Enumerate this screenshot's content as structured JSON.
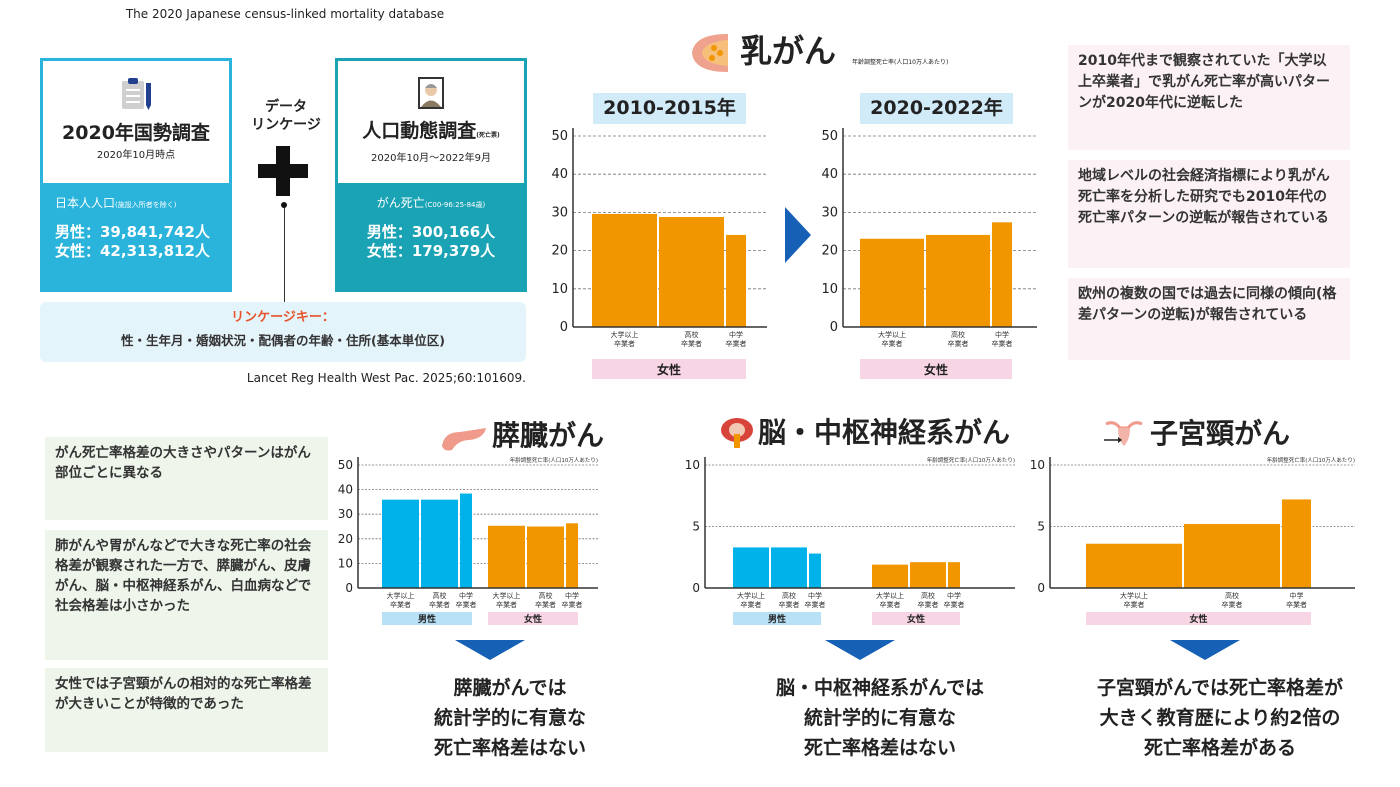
{
  "database": {
    "title": "The 2020 Japanese census-linked mortality database",
    "census": {
      "icon": "clipboard-icon",
      "title": "2020年国勢調査",
      "date": "2020年10月時点",
      "pop_label": "日本人人口",
      "pop_note": "(施設入所者を除く)",
      "male": "男性：39,841,742人",
      "female": "女性：42,313,812人",
      "color": "#2ab4dc"
    },
    "vital": {
      "icon": "portrait-icon",
      "title": "人口動態調査",
      "title_note": "(死亡票)",
      "date": "2020年10月～2022年9月",
      "death_label": "がん死亡",
      "death_note": "(C00-96:25-84歳)",
      "male": "男性：300,166人",
      "female": "女性：179,379人",
      "color": "#1aa3b4"
    },
    "linkage_label": "データ\nリンケージ",
    "linkage_key_label": "リンケージキー：",
    "linkage_key_value": "性・生年月・婚姻状況・配偶者の年齢・住所(基本単位区)",
    "citation": "Lancet Reg Health West Pac. 2025;60:101609."
  },
  "breast": {
    "title": "乳がん",
    "subtitle": "年齢調整死亡率(人口10万人あたり)",
    "icon": "breast-icon",
    "arrow_icon": "right-arrow-icon"
  },
  "notes_right": [
    "2010年代まで観察されていた「大学以上卒業者」で乳がん死亡率が高いパターンが2020年代に逆転した",
    "地域レベルの社会経済指標により乳がん死亡率を分析した研究でも2010年代の死亡率パターンの逆転が報告されている",
    "欧州の複数の国では過去に同様の傾向(格差パターンの逆転)が報告されている"
  ],
  "notes_left": [
    "がん死亡率格差の大きさやパターンはがん部位ごとに異なる",
    "肺がんや胃がんなどで大きな死亡率の社会格差が観察された一方で、膵臓がん、皮膚がん、脳・中枢神経系がん、白血病などで社会格差は小さかった",
    "女性では子宮頸がんの相対的な死亡率格差が大きいことが特徴的であった"
  ],
  "conclusions": [
    "膵臓がんでは\n統計学的に有意な\n死亡率格差はない",
    "脳・中枢神経系がんでは\n統計学的に有意な\n死亡率格差はない",
    "子宮頸がんでは死亡率格差が\n大きく教育歴により約2倍の\n死亡率格差がある"
  ],
  "colors": {
    "male": "#00b2ea",
    "female": "#f29600",
    "male_label_bg": "#b9e1f6",
    "female_label_bg": "#f7d5e4",
    "arrow": "#1660b5"
  },
  "chart_data": [
    {
      "type": "bar",
      "title": "乳がん",
      "period": "2010-2015年",
      "ylabel": "年齢調整死亡率(人口10万人あたり)",
      "ylim": [
        0,
        50
      ],
      "yticks": [
        0,
        10,
        20,
        30,
        40,
        50
      ],
      "grid": true,
      "groups": [
        {
          "name": "女性",
          "categories": [
            "大学以上\n卒業者",
            "高校\n卒業者",
            "中学\n卒業者"
          ],
          "values": [
            29.6,
            28.8,
            24.1
          ]
        }
      ]
    },
    {
      "type": "bar",
      "title": "乳がん",
      "period": "2020-2022年",
      "ylabel": "年齢調整死亡率(人口10万人あたり)",
      "ylim": [
        0,
        50
      ],
      "yticks": [
        0,
        10,
        20,
        30,
        40,
        50
      ],
      "grid": true,
      "groups": [
        {
          "name": "女性",
          "categories": [
            "大学以上\n卒業者",
            "高校\n卒業者",
            "中学\n卒業者"
          ],
          "values": [
            23.1,
            24.1,
            27.4
          ]
        }
      ]
    },
    {
      "type": "bar",
      "title": "膵臓がん",
      "icon": "pancreas-icon",
      "ylabel": "年齢調整死亡率(人口10万人あたり)",
      "ylim": [
        0,
        50
      ],
      "yticks": [
        0,
        10,
        20,
        30,
        40,
        50
      ],
      "grid": true,
      "groups": [
        {
          "name": "男性",
          "categories": [
            "大学以上\n卒業者",
            "高校\n卒業者",
            "中学\n卒業者"
          ],
          "values": [
            35.9,
            35.9,
            38.4
          ]
        },
        {
          "name": "女性",
          "categories": [
            "大学以上\n卒業者",
            "高校\n卒業者",
            "中学\n卒業者"
          ],
          "values": [
            25.3,
            25.0,
            26.3
          ]
        }
      ]
    },
    {
      "type": "bar",
      "title": "脳・中枢神経系がん",
      "icon": "brain-icon",
      "ylabel": "年齢調整死亡率(人口10万人あたり)",
      "ylim": [
        0,
        10
      ],
      "yticks": [
        0,
        5,
        10
      ],
      "grid": true,
      "groups": [
        {
          "name": "男性",
          "categories": [
            "大学以上\n卒業者",
            "高校\n卒業者",
            "中学\n卒業者"
          ],
          "values": [
            3.3,
            3.3,
            2.8
          ]
        },
        {
          "name": "女性",
          "categories": [
            "大学以上\n卒業者",
            "高校\n卒業者",
            "中学\n卒業者"
          ],
          "values": [
            1.9,
            2.1,
            2.1
          ]
        }
      ]
    },
    {
      "type": "bar",
      "title": "子宮頸がん",
      "icon": "uterus-icon",
      "ylabel": "年齢調整死亡率(人口10万人あたり)",
      "ylim": [
        0,
        10
      ],
      "yticks": [
        0,
        5,
        10
      ],
      "grid": true,
      "groups": [
        {
          "name": "女性",
          "categories": [
            "大学以上\n卒業者",
            "高校\n卒業者",
            "中学\n卒業者"
          ],
          "values": [
            3.6,
            5.2,
            7.2
          ]
        }
      ]
    }
  ]
}
